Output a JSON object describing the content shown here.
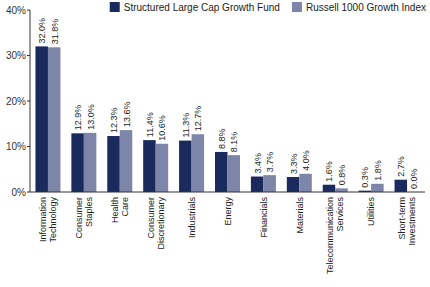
{
  "chart_data": {
    "type": "bar",
    "categories": [
      "Information Technology",
      "Consumer Staples",
      "Health Care",
      "Consumer Discretionary",
      "Industrials",
      "Energy",
      "Financials",
      "Materials",
      "Telecommunication Services",
      "Utilities",
      "Short-term Investments"
    ],
    "series": [
      {
        "name": "Structured Large Cap Growth Fund",
        "color": "#1b2a5c",
        "values": [
          32.0,
          12.9,
          12.3,
          11.4,
          11.3,
          8.8,
          3.4,
          3.3,
          1.6,
          0.3,
          2.7
        ],
        "value_labels": [
          "32.0%",
          "12.9%",
          "12.3%",
          "11.4%",
          "11.3%",
          "8.8%",
          "3.4%",
          "3.3%",
          "1.6%",
          "0.3%",
          "2.7%"
        ]
      },
      {
        "name": "Russell 1000 Growth Index",
        "color": "#7d86a8",
        "values": [
          31.8,
          13.0,
          13.6,
          10.6,
          12.7,
          8.1,
          3.7,
          4.0,
          0.8,
          1.8,
          0.0
        ],
        "value_labels": [
          "31.8%",
          "13.0%",
          "13.6%",
          "10.6%",
          "12.7%",
          "8.1%",
          "3.7%",
          "4.0%",
          "0.8%",
          "1.8%",
          "0.0%"
        ]
      }
    ],
    "ylim": [
      0,
      40
    ],
    "yticks": [
      {
        "value": 0,
        "label": "0%"
      },
      {
        "value": 10,
        "label": "10%"
      },
      {
        "value": 20,
        "label": "20%"
      },
      {
        "value": 30,
        "label": "30%"
      },
      {
        "value": 40,
        "label": "40%"
      }
    ],
    "grid": false,
    "legend": "top",
    "data_labels": true
  }
}
